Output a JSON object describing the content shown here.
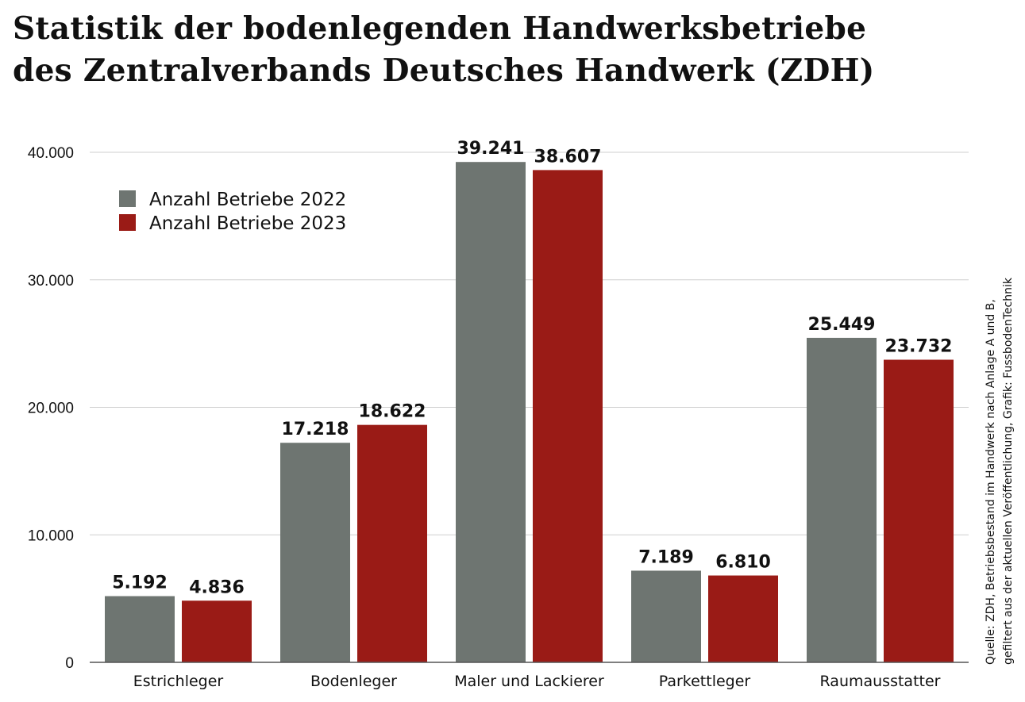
{
  "chart_data": {
    "type": "bar",
    "title": [
      "Statistik der bodenlegenden Handwerksbetriebe",
      "des Zentralverbands Deutsches Handwerk (ZDH)"
    ],
    "categories": [
      "Estrichleger",
      "Bodenleger",
      "Maler und Lackierer",
      "Parkettleger",
      "Raumausstatter"
    ],
    "series": [
      {
        "name": "Anzahl Betriebe 2022",
        "color": "#6e7571",
        "values": [
          5192,
          17218,
          39241,
          7189,
          25449
        ],
        "labels": [
          "5.192",
          "17.218",
          "39.241",
          "7.189",
          "25.449"
        ]
      },
      {
        "name": "Anzahl Betriebe 2023",
        "color": "#9a1b16",
        "values": [
          4836,
          18622,
          38607,
          6810,
          23732
        ],
        "labels": [
          "4.836",
          "18.622",
          "38.607",
          "6.810",
          "23.732"
        ]
      }
    ],
    "ylim": [
      0,
      40000
    ],
    "yticks": [
      0,
      10000,
      20000,
      30000,
      40000
    ],
    "ytick_labels": [
      "0",
      "10.000",
      "20.000",
      "30.000",
      "40.000"
    ],
    "grid": true,
    "legend_position": "top-left",
    "xlabel": "",
    "ylabel": "",
    "source": [
      "Quelle: ZDH, Betriebsbestand im Handwerk nach Anlage A und B,",
      "gefiltert aus der aktuellen Veröffentlichung, Grafik: FussbodenTechnik"
    ]
  }
}
